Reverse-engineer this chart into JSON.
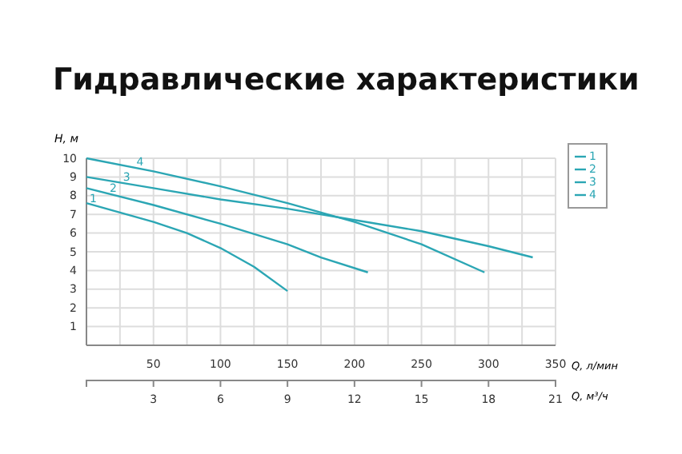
{
  "chart_data": {
    "type": "line",
    "title": "Гидравлические характеристики",
    "xlabel": "Q, л/мин",
    "ylabel": "H, м",
    "x2label": "Q, м³/ч",
    "xlim": [
      0,
      350
    ],
    "xticks": [
      {
        "value": 25,
        "label": null
      },
      50,
      {
        "value": 75,
        "label": null
      },
      100,
      {
        "value": 125,
        "label": null
      },
      150,
      {
        "value": 175,
        "label": null
      },
      200,
      {
        "value": 225,
        "label": null
      },
      250,
      {
        "value": 275,
        "label": null
      },
      300,
      {
        "value": 325,
        "label": null
      },
      350
    ],
    "x2lim": [
      0,
      21
    ],
    "x2ticks": [
      3,
      6,
      9,
      12,
      15,
      18,
      21
    ],
    "ylim": [
      0,
      10
    ],
    "yticks": [
      1,
      2,
      3,
      4,
      5,
      6,
      7,
      8,
      9,
      10
    ],
    "grid": true,
    "legend": "top right",
    "marker": "none",
    "line_style": "solid",
    "series": [
      {
        "name": "1",
        "color": "#2ba6b4",
        "x": [
          0,
          25,
          50,
          75,
          100,
          125,
          150
        ],
        "values": [
          7.6,
          7.1,
          6.6,
          6.0,
          5.2,
          4.2,
          2.9
        ]
      },
      {
        "name": "2",
        "color": "#2ba6b4",
        "x": [
          0,
          50,
          100,
          150,
          175,
          210
        ],
        "values": [
          8.4,
          7.5,
          6.5,
          5.4,
          4.7,
          3.9
        ]
      },
      {
        "name": "3",
        "color": "#2ba6b4",
        "x": [
          0,
          50,
          100,
          150,
          200,
          250,
          300,
          333
        ],
        "values": [
          9.0,
          8.4,
          7.8,
          7.3,
          6.7,
          6.1,
          5.3,
          4.7
        ]
      },
      {
        "name": "4",
        "color": "#2ba6b4",
        "x": [
          0,
          50,
          100,
          150,
          200,
          250,
          297
        ],
        "values": [
          10.0,
          9.3,
          8.5,
          7.6,
          6.6,
          5.4,
          3.9
        ]
      }
    ]
  }
}
